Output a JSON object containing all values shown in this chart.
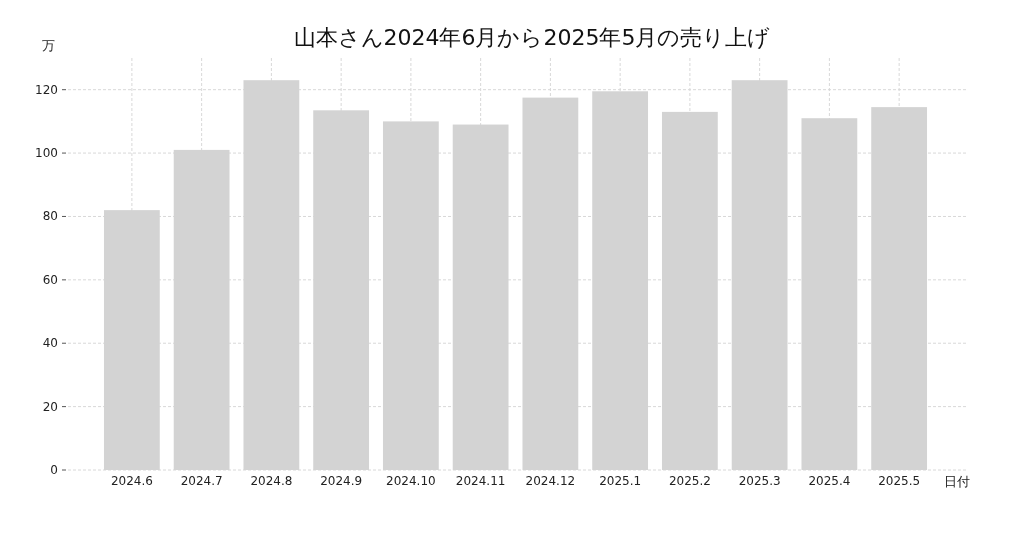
{
  "chart_data": {
    "type": "bar",
    "title": "山本さん2024年6月から2025年5月の売り上げ",
    "xlabel": "日付",
    "ylabel": "万",
    "categories": [
      "2024.6",
      "2024.7",
      "2024.8",
      "2024.9",
      "2024.10",
      "2024.11",
      "2024.12",
      "2025.1",
      "2025.2",
      "2025.3",
      "2025.4",
      "2025.5"
    ],
    "values": [
      82,
      101,
      123,
      113.5,
      110,
      109,
      117.5,
      119.5,
      113,
      123,
      111,
      114.5
    ],
    "color": "#d3d3d3",
    "ylim": [
      0,
      130
    ],
    "yticks": [
      0,
      20,
      40,
      60,
      80,
      100,
      120
    ],
    "grid": true
  }
}
